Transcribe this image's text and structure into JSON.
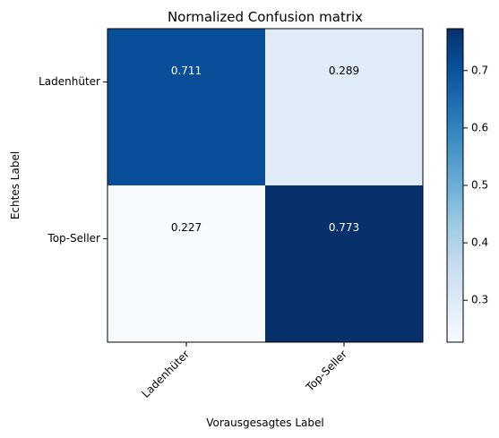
{
  "chart_data": {
    "type": "heatmap",
    "title": "Normalized Confusion matrix",
    "xlabel": "Vorausgesagtes Label",
    "ylabel": "Echtes Label",
    "x_categories": [
      "Ladenhüter",
      "Top-Seller"
    ],
    "y_categories": [
      "Ladenhüter",
      "Top-Seller"
    ],
    "values": [
      [
        0.711,
        0.289
      ],
      [
        0.227,
        0.773
      ]
    ],
    "cell_labels": [
      [
        "0.711",
        "0.289"
      ],
      [
        "0.227",
        "0.773"
      ]
    ],
    "colormap": "Blues",
    "colorbar": {
      "range": [
        0.227,
        0.773
      ],
      "ticks": [
        0.3,
        0.4,
        0.5,
        0.6,
        0.7
      ],
      "tick_labels": [
        "0.3",
        "0.4",
        "0.5",
        "0.6",
        "0.7"
      ]
    },
    "x_tick_rotation_deg": 45,
    "text_colors": {
      "light_cell": "#000000",
      "dark_cell": "#ffffff"
    }
  }
}
